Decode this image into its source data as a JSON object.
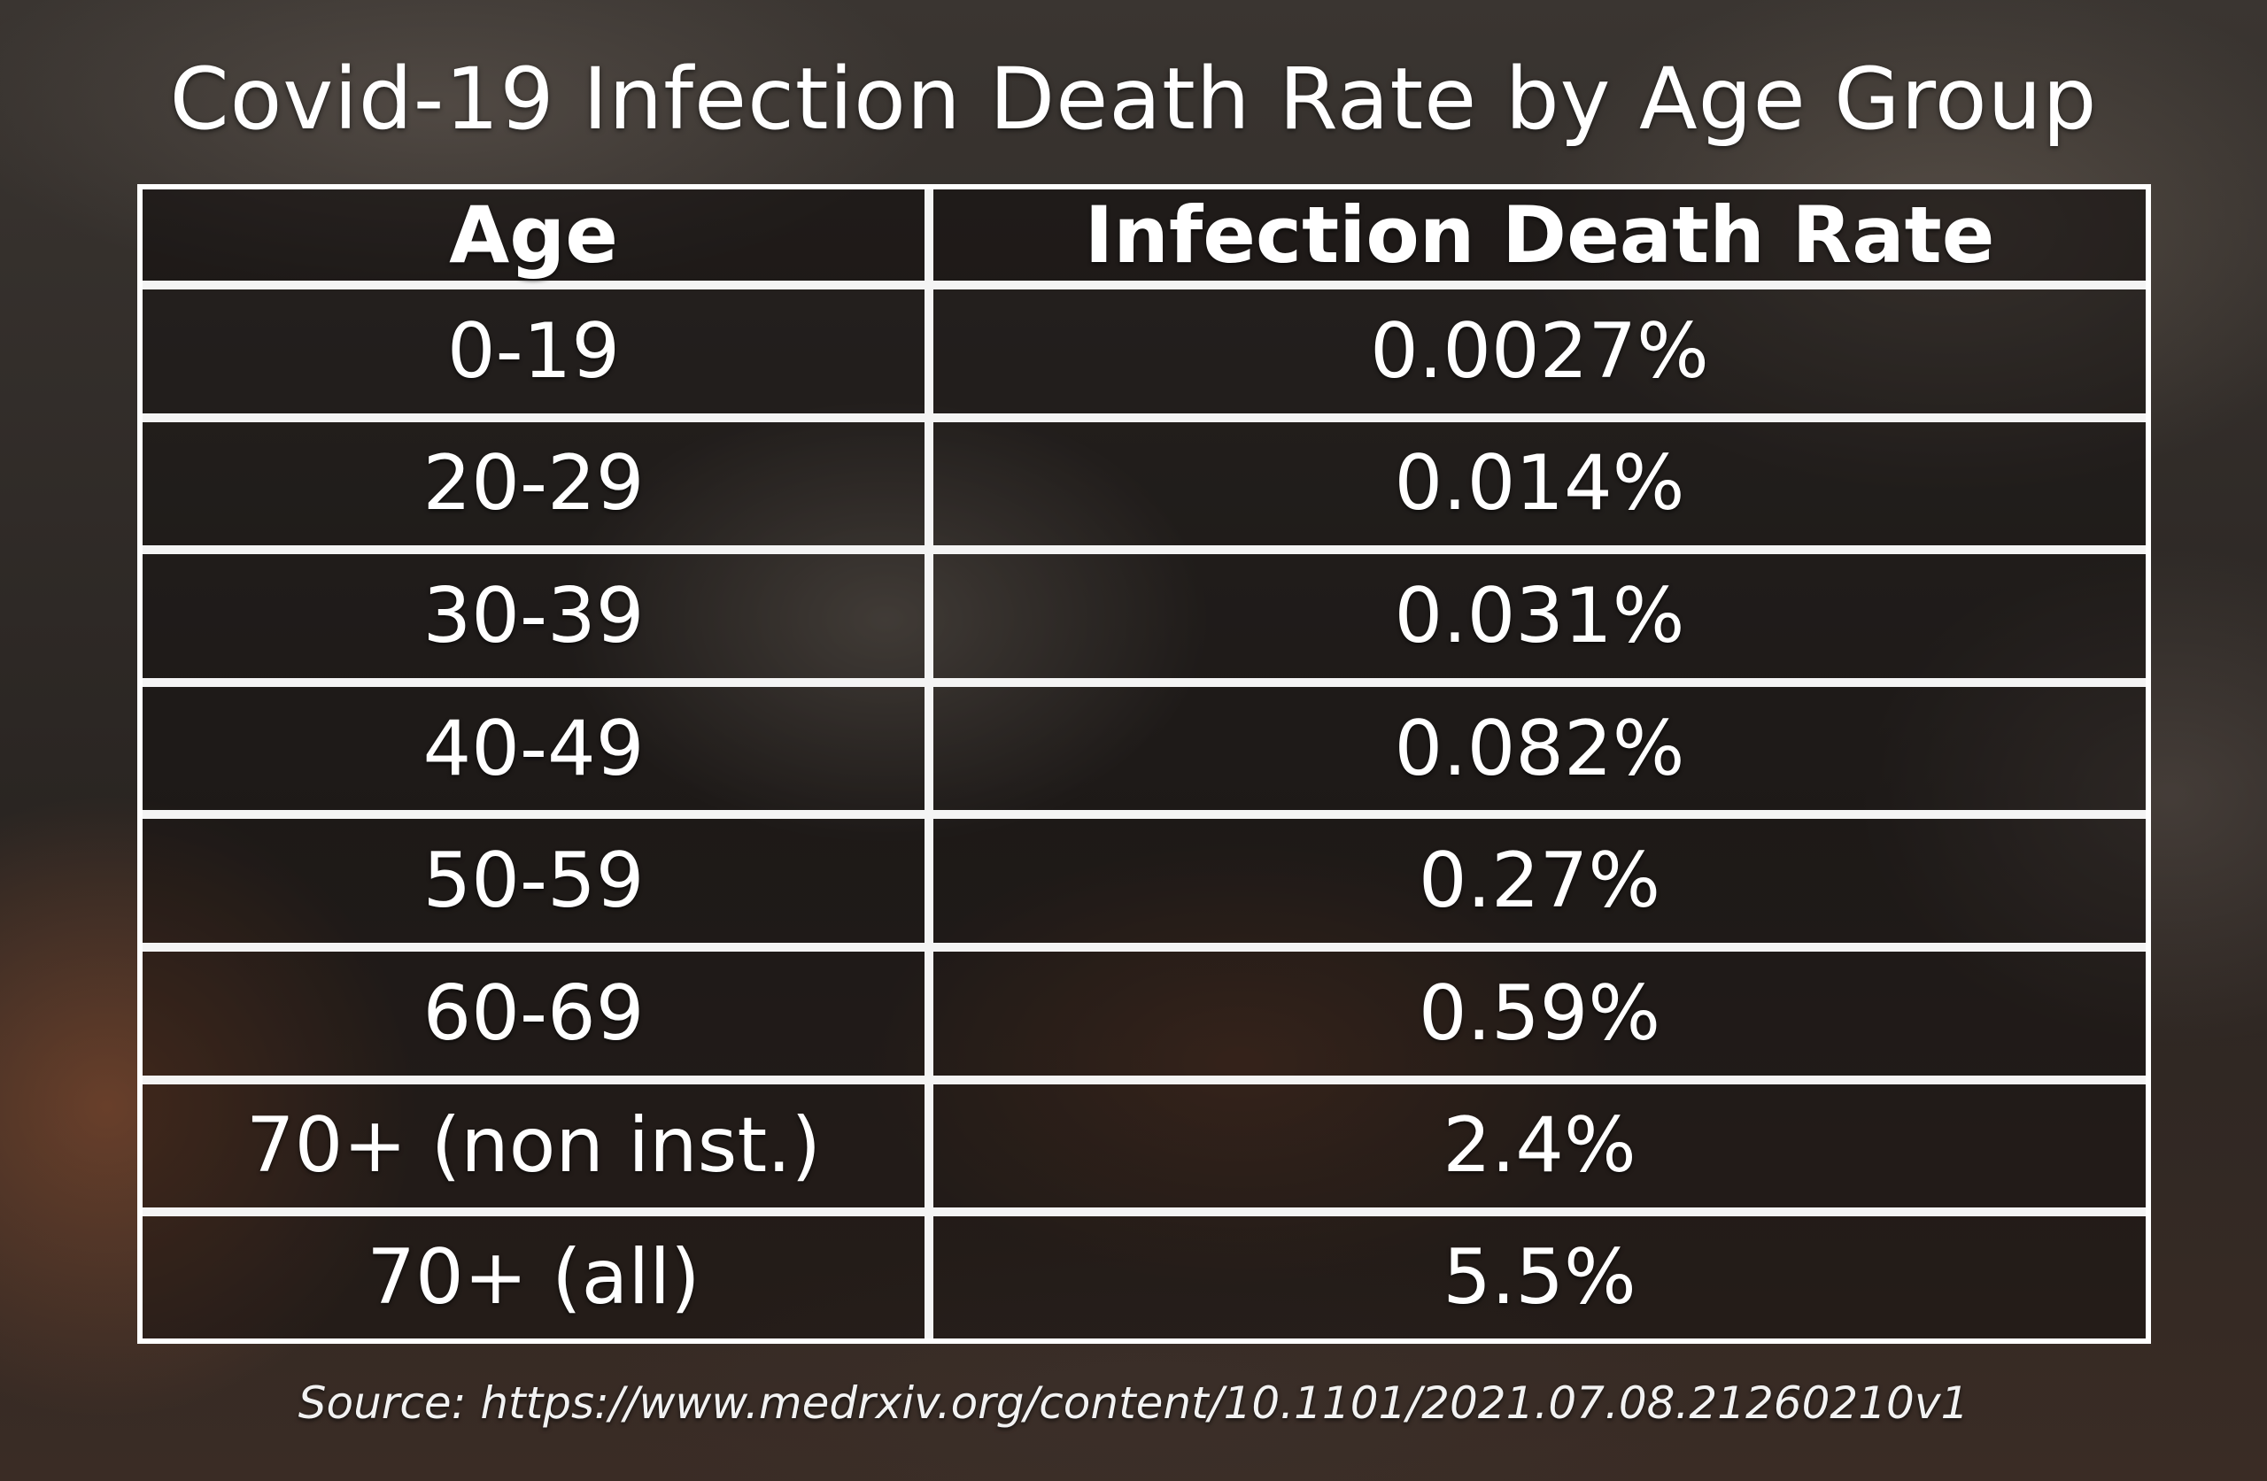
{
  "chart_data": {
    "type": "table",
    "title": "Covid-19 Infection Death Rate by Age Group",
    "columns": [
      "Age",
      "Infection Death Rate"
    ],
    "rows": [
      {
        "age": "0-19",
        "rate": "0.0027%"
      },
      {
        "age": "20-29",
        "rate": "0.014%"
      },
      {
        "age": "30-39",
        "rate": "0.031%"
      },
      {
        "age": "40-49",
        "rate": "0.082%"
      },
      {
        "age": "50-59",
        "rate": "0.27%"
      },
      {
        "age": "60-69",
        "rate": "0.59%"
      },
      {
        "age": "70+ (non inst.)",
        "rate": "2.4%"
      },
      {
        "age": "70+ (all)",
        "rate": "5.5%"
      }
    ],
    "source": "Source: https://www.medrxiv.org/content/10.1101/2021.07.08.21260210v1"
  },
  "colors": {
    "text": "#ffffff",
    "grid": "#f4f4f4"
  }
}
